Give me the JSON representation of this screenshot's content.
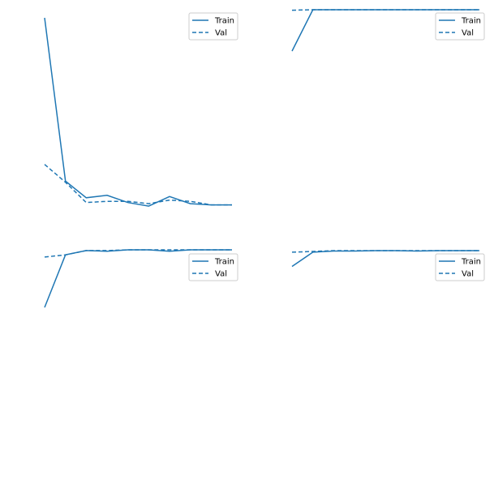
{
  "colors": {
    "series": "#1f77b4",
    "legend_border": "#cccccc",
    "background": "#ffffff"
  },
  "chart_data": [
    {
      "type": "line",
      "x": [
        0,
        1,
        2,
        3,
        4,
        5,
        6,
        7,
        8,
        9
      ],
      "series": [
        {
          "name": "Train",
          "style": "solid",
          "values": [
            2.2,
            0.83,
            0.69,
            0.71,
            0.65,
            0.62,
            0.7,
            0.64,
            0.63,
            0.63
          ]
        },
        {
          "name": "Val",
          "style": "dashed",
          "values": [
            0.97,
            0.82,
            0.65,
            0.66,
            0.66,
            0.64,
            0.67,
            0.66,
            0.63,
            0.63
          ]
        }
      ],
      "ylim": [
        0.6,
        2.2
      ],
      "legend_position": "upper right",
      "axes_visible": false,
      "grid": false
    },
    {
      "type": "line",
      "x": [
        0,
        1,
        2,
        3,
        4,
        5,
        6,
        7,
        8,
        9
      ],
      "series": [
        {
          "name": "Train",
          "style": "solid",
          "values": [
            0.2,
            1.0,
            1.0,
            1.0,
            1.0,
            1.0,
            1.0,
            1.0,
            1.0,
            1.0
          ]
        },
        {
          "name": "Val",
          "style": "dashed",
          "values": [
            0.99,
            1.0,
            1.0,
            1.0,
            1.0,
            1.0,
            1.0,
            1.0,
            1.0,
            1.0
          ]
        }
      ],
      "ylim": [
        0.2,
        1.0
      ],
      "legend_position": "upper right",
      "axes_visible": false,
      "grid": false
    },
    {
      "type": "line",
      "x": [
        0,
        1,
        2,
        3,
        4,
        5,
        6,
        7,
        8,
        9
      ],
      "series": [
        {
          "name": "Train",
          "style": "solid",
          "values": [
            0.2,
            0.93,
            0.99,
            0.98,
            1.0,
            1.0,
            0.98,
            1.0,
            1.0,
            1.0
          ]
        },
        {
          "name": "Val",
          "style": "dashed",
          "values": [
            0.9,
            0.93,
            0.99,
            0.99,
            1.0,
            1.0,
            1.0,
            1.0,
            1.0,
            1.0
          ]
        }
      ],
      "ylim": [
        0.2,
        1.0
      ],
      "legend_position": "upper right",
      "axes_visible": false,
      "grid": false
    },
    {
      "type": "line",
      "x": [
        0,
        1,
        2,
        3,
        4,
        5,
        6,
        7,
        8,
        9
      ],
      "series": [
        {
          "name": "Train",
          "style": "solid",
          "values": [
            0.6,
            0.96,
            0.99,
            0.99,
            1.0,
            1.0,
            0.99,
            1.0,
            1.0,
            1.0
          ]
        },
        {
          "name": "Val",
          "style": "dashed",
          "values": [
            0.96,
            0.98,
            1.0,
            1.0,
            1.0,
            1.0,
            1.0,
            1.0,
            1.0,
            1.0
          ]
        }
      ],
      "ylim": [
        0.2,
        1.0
      ],
      "legend_position": "upper right",
      "axes_visible": false,
      "grid": false
    }
  ]
}
